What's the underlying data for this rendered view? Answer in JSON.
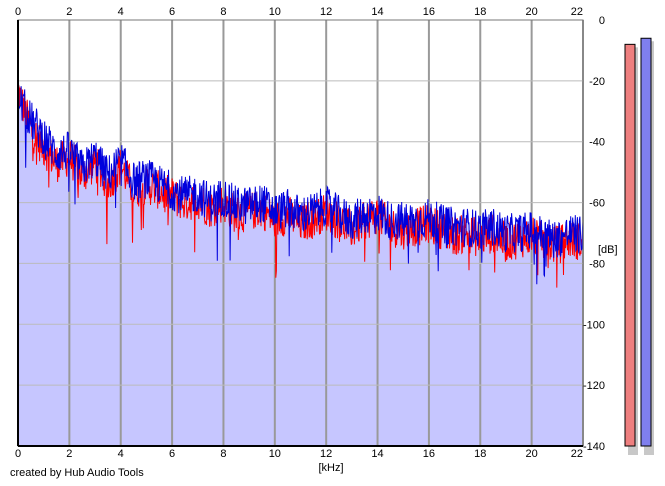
{
  "credit": "created by Hub Audio Tools",
  "chart_data": {
    "type": "line",
    "title": "",
    "xlabel": "[kHz]",
    "ylabel": "[dB]",
    "xlim": [
      0,
      22
    ],
    "ylim": [
      -140,
      0
    ],
    "x_ticks": [
      0,
      2,
      4,
      6,
      8,
      10,
      12,
      14,
      16,
      18,
      20,
      22
    ],
    "y_ticks": [
      0,
      -20,
      -40,
      -60,
      -80,
      -100,
      -120,
      -140
    ],
    "grid": true,
    "series": [
      {
        "color": "#ff0000",
        "x": [
          0,
          0.5,
          1,
          1.5,
          2,
          2.5,
          3,
          3.5,
          4,
          4.5,
          5,
          5.5,
          6,
          6.5,
          7,
          7.5,
          8,
          8.5,
          9,
          9.5,
          10,
          10.5,
          11,
          11.5,
          12,
          12.5,
          13,
          13.5,
          14,
          14.5,
          15,
          15.5,
          16,
          16.5,
          17,
          17.5,
          18,
          18.5,
          19,
          19.5,
          20,
          20.5,
          21,
          21.5,
          22
        ],
        "values": [
          -23,
          -36,
          -42,
          -47,
          -45,
          -51,
          -47,
          -54,
          -48,
          -56,
          -54,
          -56,
          -58,
          -60,
          -59,
          -62,
          -60,
          -64,
          -63,
          -62,
          -66,
          -64,
          -67,
          -65,
          -63,
          -66,
          -69,
          -66,
          -64,
          -68,
          -69,
          -68,
          -67,
          -69,
          -71,
          -70,
          -72,
          -70,
          -73,
          -72,
          -71,
          -73,
          -74,
          -72,
          -73
        ]
      },
      {
        "color": "#0000dd",
        "x": [
          0,
          0.5,
          1,
          1.5,
          2,
          2.5,
          3,
          3.5,
          4,
          4.5,
          5,
          5.5,
          6,
          6.5,
          7,
          7.5,
          8,
          8.5,
          9,
          9.5,
          10,
          10.5,
          11,
          11.5,
          12,
          12.5,
          13,
          13.5,
          14,
          14.5,
          15,
          15.5,
          16,
          16.5,
          17,
          17.5,
          18,
          18.5,
          19,
          19.5,
          20,
          20.5,
          21,
          21.5,
          22
        ],
        "values": [
          -25,
          -33,
          -38,
          -44,
          -43,
          -49,
          -45,
          -51,
          -46,
          -53,
          -52,
          -54,
          -56,
          -58,
          -57,
          -60,
          -58,
          -61,
          -61,
          -60,
          -63,
          -62,
          -64,
          -63,
          -61,
          -64,
          -66,
          -64,
          -63,
          -66,
          -66,
          -66,
          -65,
          -67,
          -68,
          -68,
          -69,
          -68,
          -70,
          -70,
          -69,
          -71,
          -72,
          -70,
          -71
        ]
      }
    ],
    "level_meters": [
      {
        "color": "#ee7f7f",
        "value": -8
      },
      {
        "color": "#7f7fee",
        "value": -6
      }
    ]
  }
}
